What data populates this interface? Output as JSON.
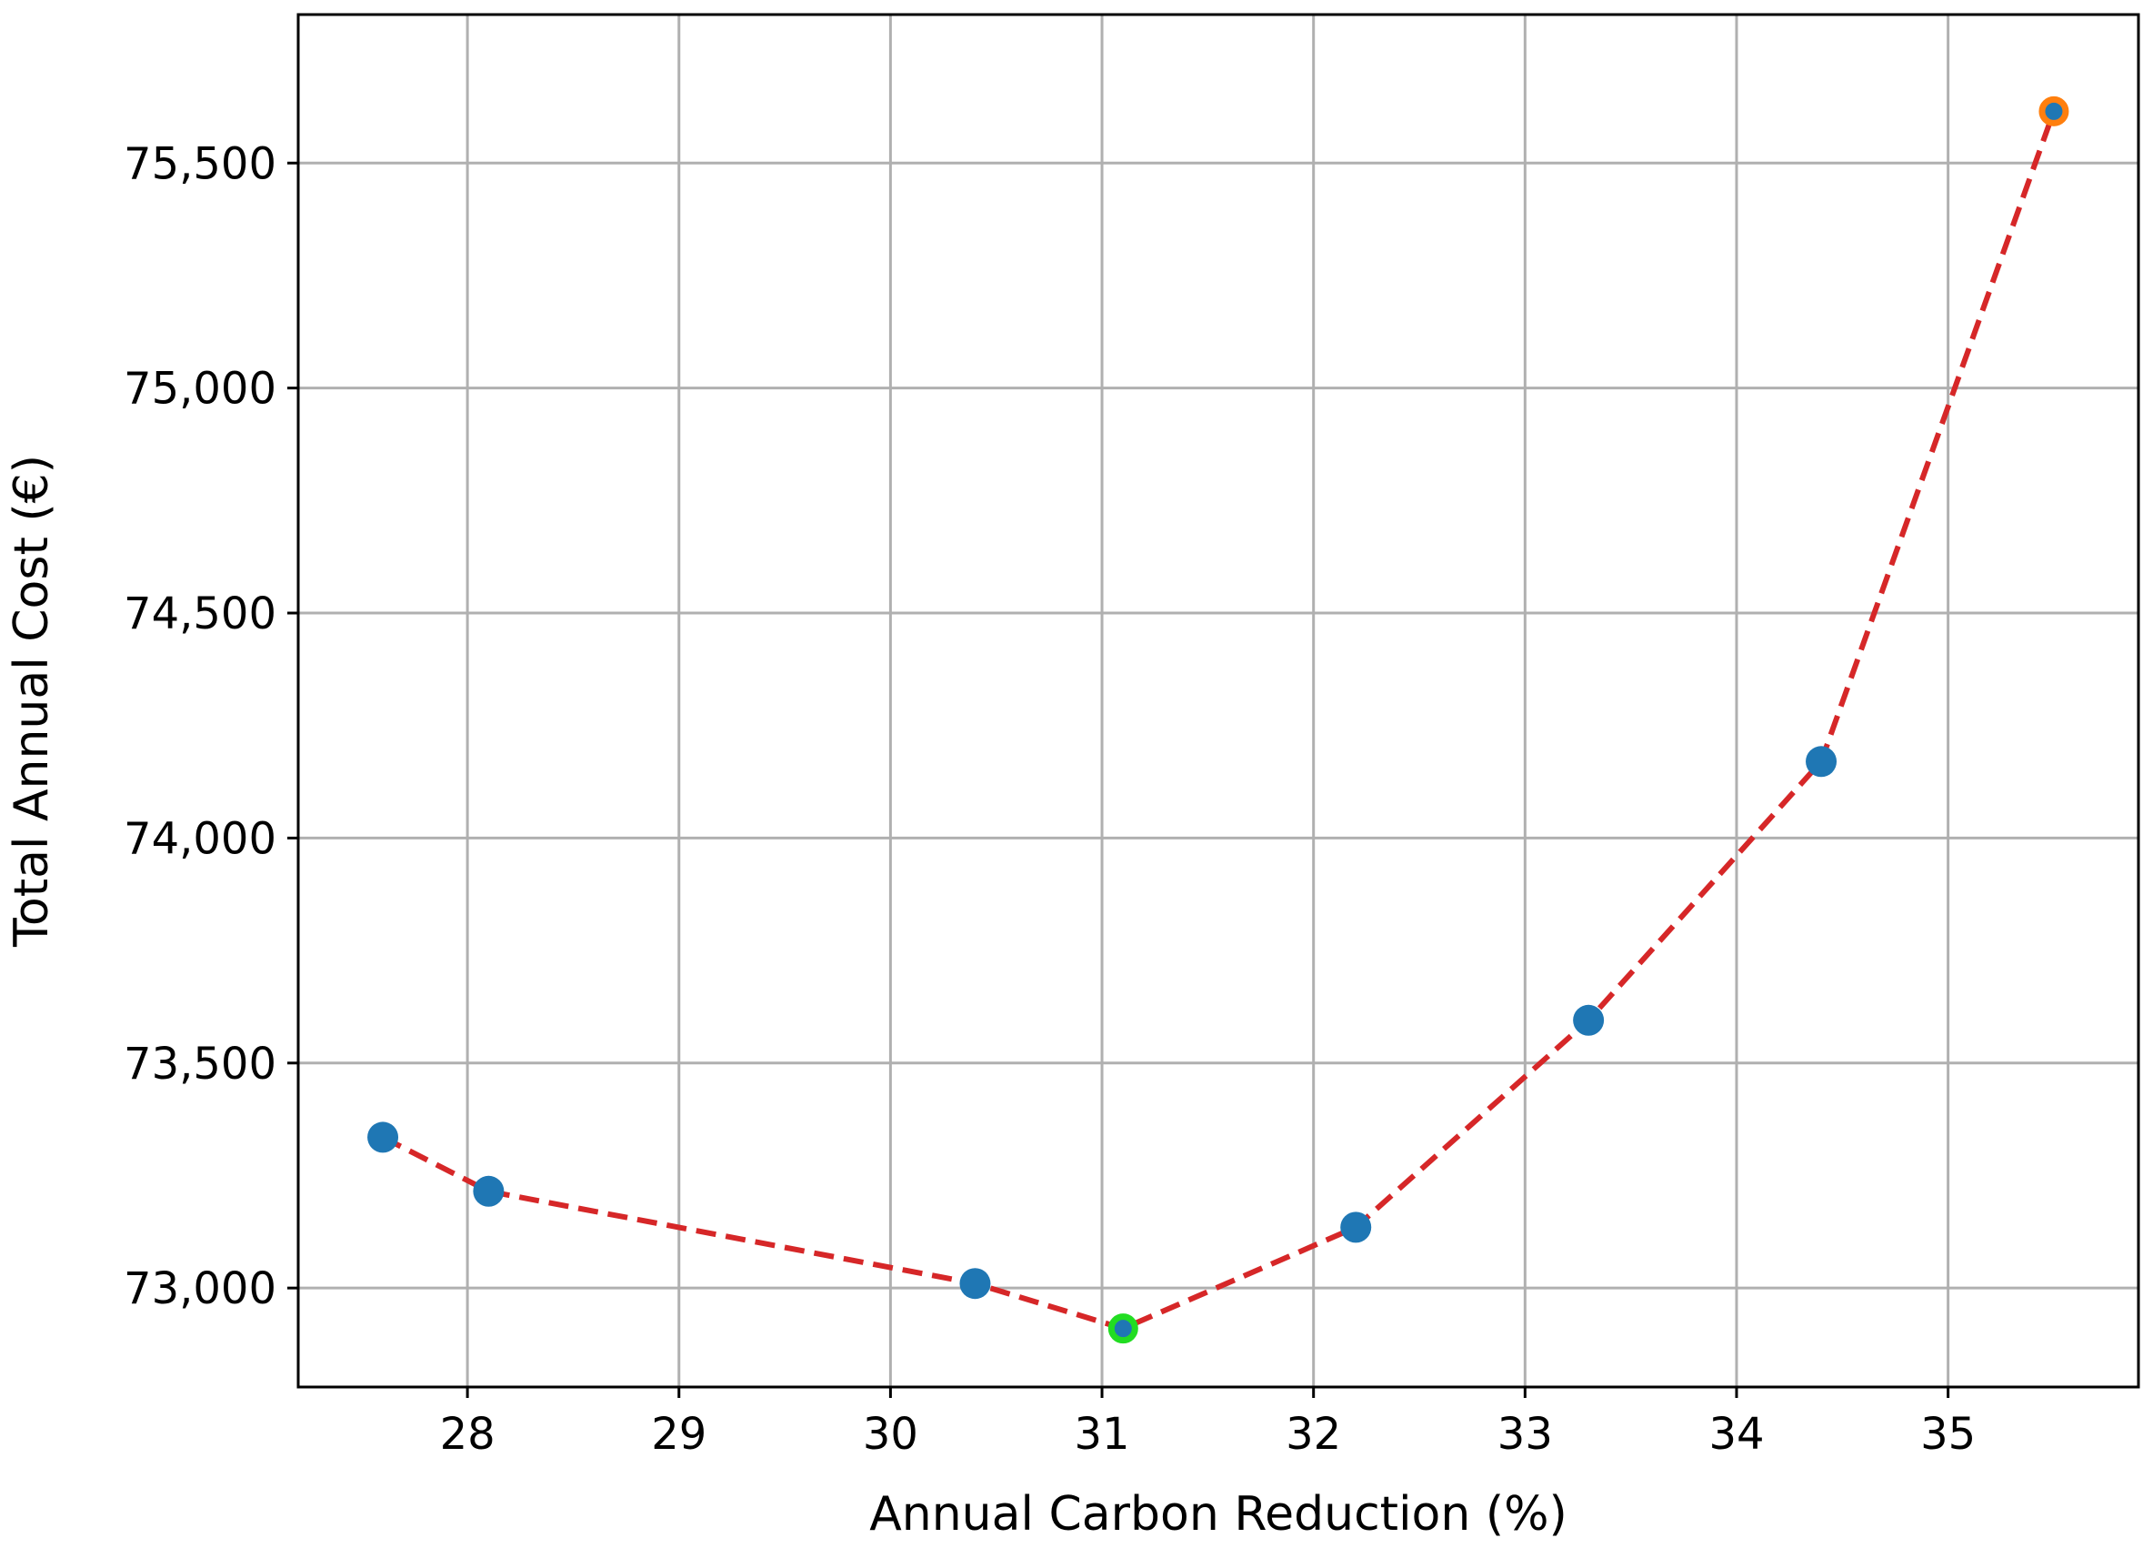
{
  "chart_data": {
    "type": "line",
    "xlabel": "Annual Carbon Reduction (%)",
    "ylabel": "Total Annual Cost (€)",
    "xlim": [
      27.2,
      35.9
    ],
    "ylim": [
      72780,
      75830
    ],
    "grid": true,
    "x_ticks": [
      28,
      29,
      30,
      31,
      32,
      33,
      34,
      35
    ],
    "x_tick_labels": [
      "28",
      "29",
      "30",
      "31",
      "32",
      "33",
      "34",
      "35"
    ],
    "y_ticks": [
      73000,
      73500,
      74000,
      74500,
      75000,
      75500
    ],
    "y_tick_labels": [
      "73,000",
      "73,500",
      "74,000",
      "74,500",
      "75,000",
      "75,500"
    ],
    "series": [
      {
        "x": [
          27.6,
          28.1,
          30.4,
          31.1,
          32.2,
          33.3,
          34.4,
          35.5
        ],
        "y": [
          73335,
          73215,
          73010,
          72910,
          73135,
          73595,
          74170,
          75615
        ],
        "color": "#1f77b4",
        "line_color": "#d62728",
        "line_style": "dashed"
      }
    ],
    "highlights": [
      {
        "x": 31.1,
        "y": 72910,
        "edge_color": "#22dd22"
      },
      {
        "x": 35.5,
        "y": 75615,
        "edge_color": "#ff7f0e"
      }
    ]
  }
}
